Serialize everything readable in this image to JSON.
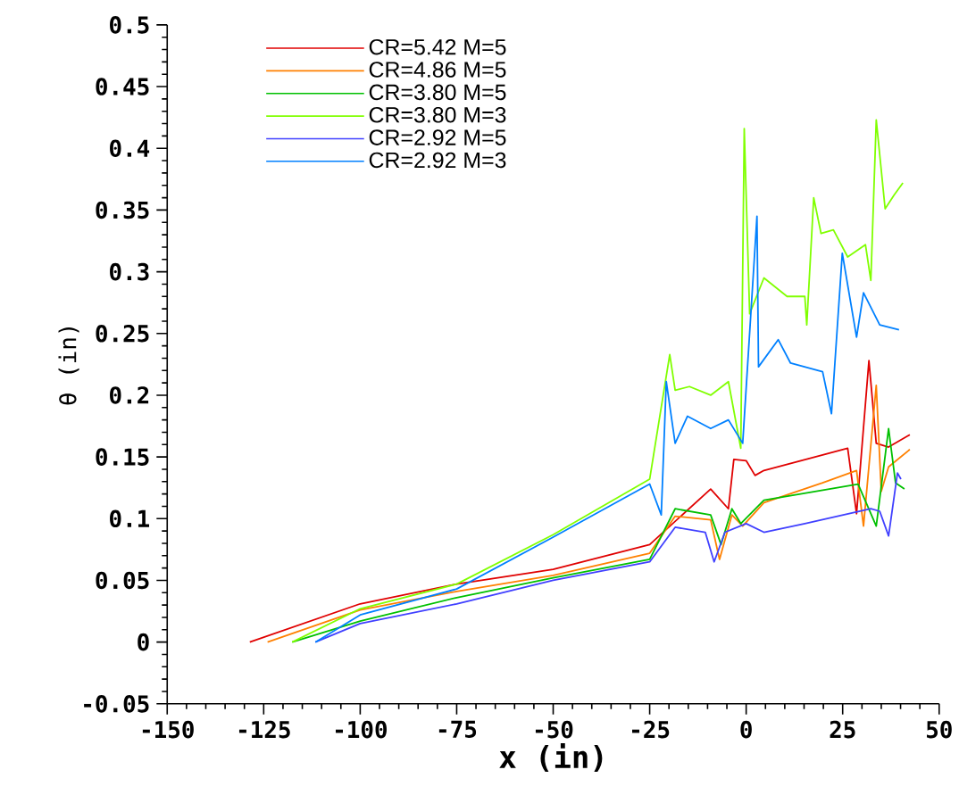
{
  "chart_data": {
    "type": "line",
    "xlabel": "x (in)",
    "ylabel": "θ (in)",
    "xlim": [
      -150,
      50
    ],
    "ylim": [
      -0.05,
      0.5
    ],
    "xticks": [
      -150,
      -125,
      -100,
      -75,
      -50,
      -25,
      0,
      25,
      50
    ],
    "yticks": [
      -0.05,
      0,
      0.05,
      0.1,
      0.15,
      0.2,
      0.25,
      0.3,
      0.35,
      0.4,
      0.45,
      0.5
    ],
    "legend": "top left",
    "grid": false,
    "series": [
      {
        "name": "CR=5.42  M=5",
        "color": "#e00000",
        "x": [
          -128.6,
          -100,
          -75,
          -50,
          -25,
          -9.2,
          -4.6,
          -3.2,
          0,
          2.3,
          4.6,
          26.3,
          28.6,
          31.8,
          33.7,
          36.9,
          42.4
        ],
        "values": [
          0,
          0.031,
          0.047,
          0.059,
          0.079,
          0.124,
          0.108,
          0.148,
          0.147,
          0.135,
          0.139,
          0.157,
          0.104,
          0.228,
          0.161,
          0.158,
          0.168
        ]
      },
      {
        "name": "CR=4.86  M=5",
        "color": "#ff8000",
        "x": [
          -124,
          -100,
          -75,
          -50,
          -25,
          -18.4,
          -9.2,
          -6.9,
          -3.7,
          -0.9,
          4.6,
          19.8,
          28.6,
          30.4,
          33.7,
          35,
          36.9,
          42.4
        ],
        "values": [
          0,
          0.026,
          0.041,
          0.054,
          0.072,
          0.102,
          0.099,
          0.067,
          0.103,
          0.094,
          0.113,
          0.129,
          0.139,
          0.094,
          0.208,
          0.122,
          0.142,
          0.156
        ]
      },
      {
        "name": "CR=3.80  M=5",
        "color": "#00c000",
        "x": [
          -117.6,
          -100,
          -75,
          -50,
          -25,
          -18.4,
          -9.2,
          -6.5,
          -3.7,
          -1.4,
          4.6,
          29,
          33.7,
          36.9,
          38.7,
          41
        ],
        "values": [
          0,
          0.017,
          0.036,
          0.052,
          0.067,
          0.108,
          0.103,
          0.079,
          0.108,
          0.096,
          0.115,
          0.128,
          0.094,
          0.173,
          0.129,
          0.124
        ]
      },
      {
        "name": "CR=3.80  M=3",
        "color": "#80ff00",
        "x": [
          -117.6,
          -100,
          -75,
          -50,
          -25,
          -19.8,
          -18.4,
          -14.7,
          -9.2,
          -4.6,
          -1.4,
          -0.5,
          0.9,
          4.6,
          10.6,
          15.2,
          15.7,
          17.5,
          19.4,
          22.6,
          26.3,
          30.9,
          32.3,
          33.7,
          36,
          38.3,
          40.6
        ],
        "values": [
          0,
          0.027,
          0.047,
          0.087,
          0.132,
          0.233,
          0.204,
          0.207,
          0.2,
          0.211,
          0.157,
          0.416,
          0.266,
          0.295,
          0.28,
          0.28,
          0.257,
          0.36,
          0.331,
          0.334,
          0.312,
          0.322,
          0.293,
          0.423,
          0.351,
          0.362,
          0.372
        ]
      },
      {
        "name": "CR=2.92  M=5",
        "color": "#4040ff",
        "x": [
          -111.6,
          -100,
          -75,
          -50,
          -25,
          -18.4,
          -10.6,
          -8.3,
          -5.5,
          0,
          4.6,
          15.2,
          32.3,
          34.6,
          36.9,
          39.2,
          40.1
        ],
        "values": [
          0,
          0.015,
          0.031,
          0.05,
          0.065,
          0.093,
          0.089,
          0.065,
          0.089,
          0.096,
          0.089,
          0.096,
          0.108,
          0.106,
          0.086,
          0.137,
          0.132
        ]
      },
      {
        "name": "CR=2.92  M=3",
        "color": "#0080ff",
        "x": [
          -111.6,
          -100,
          -75,
          -50,
          -25,
          -22,
          -20.7,
          -18.4,
          -15.2,
          -9.2,
          -4.6,
          -0.9,
          2.8,
          3.2,
          8.3,
          11.5,
          19.8,
          22.1,
          24.9,
          28.6,
          30.4,
          34.6,
          39.6
        ],
        "values": [
          0,
          0.022,
          0.043,
          0.085,
          0.128,
          0.103,
          0.211,
          0.161,
          0.183,
          0.173,
          0.18,
          0.161,
          0.345,
          0.223,
          0.245,
          0.226,
          0.219,
          0.185,
          0.315,
          0.247,
          0.283,
          0.257,
          0.253
        ]
      }
    ]
  }
}
